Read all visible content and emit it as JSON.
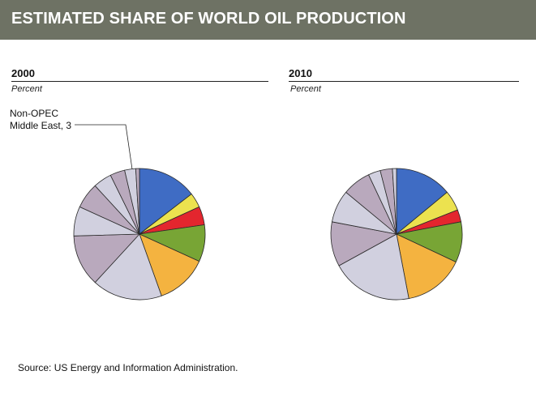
{
  "header": {
    "title": "ESTIMATED SHARE OF WORLD OIL PRODUCTION"
  },
  "source": "Source: US Energy and Information Administration.",
  "chart_data": [
    {
      "type": "pie",
      "title": "2000",
      "subtitle": "Percent",
      "callout": {
        "line1": "Non-OPEC",
        "line2": "Middle East, 3"
      },
      "slices": [
        {
          "value": 16.0,
          "color": "#3f6cc4"
        },
        {
          "value": 4.0,
          "color": "#ece24f"
        },
        {
          "value": 5.0,
          "color": "#e3262e"
        },
        {
          "value": 10.0,
          "color": "#78a535"
        },
        {
          "value": 14.0,
          "color": "#f4b340"
        },
        {
          "value": 19.0,
          "color": "#d1d0df"
        },
        {
          "value": 14.0,
          "color": "#b9a9bd"
        },
        {
          "value": 8.0,
          "color": "#d1d0df"
        },
        {
          "value": 7.0,
          "color": "#b9a9bd"
        },
        {
          "value": 5.0,
          "color": "#d1d0df"
        },
        {
          "value": 4.0,
          "color": "#b9a9bd"
        },
        {
          "value": 3.0,
          "color": "#d1d0df"
        },
        {
          "value": 1.0,
          "color": "#b9a9bd"
        }
      ]
    },
    {
      "type": "pie",
      "title": "2010",
      "subtitle": "Percent",
      "slices": [
        {
          "value": 14.0,
          "color": "#3f6cc4"
        },
        {
          "value": 5.0,
          "color": "#ece24f"
        },
        {
          "value": 3.0,
          "color": "#e3262e"
        },
        {
          "value": 10.0,
          "color": "#78a535"
        },
        {
          "value": 15.0,
          "color": "#f4b340"
        },
        {
          "value": 20.0,
          "color": "#d1d0df"
        },
        {
          "value": 11.0,
          "color": "#b9a9bd"
        },
        {
          "value": 8.0,
          "color": "#d1d0df"
        },
        {
          "value": 7.0,
          "color": "#b9a9bd"
        },
        {
          "value": 3.0,
          "color": "#d1d0df"
        },
        {
          "value": 3.0,
          "color": "#b9a9bd"
        },
        {
          "value": 1.0,
          "color": "#d1d0df"
        }
      ]
    }
  ]
}
